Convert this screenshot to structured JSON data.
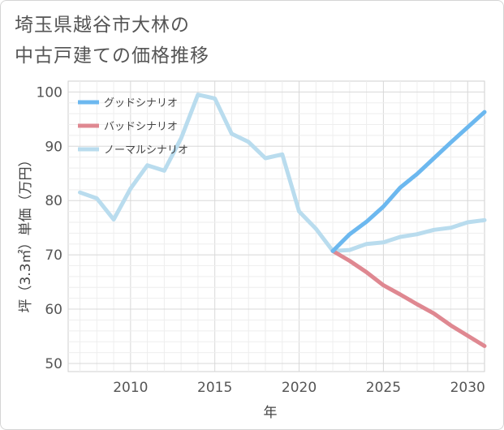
{
  "title_line1": "埼玉県越谷市大林の",
  "title_line2": "中古戸建ての価格推移",
  "chart_data": {
    "type": "line",
    "title": "埼玉県越谷市大林の中古戸建ての価格推移",
    "xlabel": "年",
    "ylabel": "坪（3.3㎡）単価（万円）",
    "xlim": [
      2006.3,
      2031
    ],
    "ylim": [
      48.5,
      102
    ],
    "xticks": [
      2010,
      2015,
      2020,
      2025,
      2030
    ],
    "yticks": [
      50,
      60,
      70,
      80,
      90,
      100
    ],
    "grid": true,
    "legend_position": "top-left",
    "series": [
      {
        "name": "グッドシナリオ",
        "color": "#6cb8ef",
        "x": [
          2022,
          2023,
          2024,
          2025,
          2026,
          2027,
          2028,
          2029,
          2030,
          2031
        ],
        "y": [
          70.7,
          73.8,
          76.1,
          78.9,
          82.4,
          84.9,
          87.8,
          90.7,
          93.5,
          96.3
        ]
      },
      {
        "name": "バッドシナリオ",
        "color": "#df8891",
        "x": [
          2022,
          2023,
          2024,
          2025,
          2026,
          2027,
          2028,
          2029,
          2030,
          2031
        ],
        "y": [
          70.7,
          68.9,
          66.8,
          64.4,
          62.7,
          60.9,
          59.2,
          57.0,
          55.1,
          53.2
        ]
      },
      {
        "name": "ノーマルシナリオ",
        "color": "#b9dcee",
        "x": [
          2007,
          2008,
          2009,
          2010,
          2011,
          2012,
          2013,
          2014,
          2015,
          2016,
          2017,
          2018,
          2019,
          2020,
          2021,
          2022,
          2023,
          2024,
          2025,
          2026,
          2027,
          2028,
          2029,
          2030,
          2031
        ],
        "y": [
          81.5,
          80.4,
          76.5,
          82.2,
          86.5,
          85.5,
          91.5,
          99.5,
          98.8,
          92.3,
          90.8,
          87.8,
          88.5,
          78.0,
          74.8,
          70.7,
          70.9,
          72.0,
          72.3,
          73.3,
          73.8,
          74.6,
          75.0,
          76.0,
          76.4
        ]
      }
    ]
  }
}
